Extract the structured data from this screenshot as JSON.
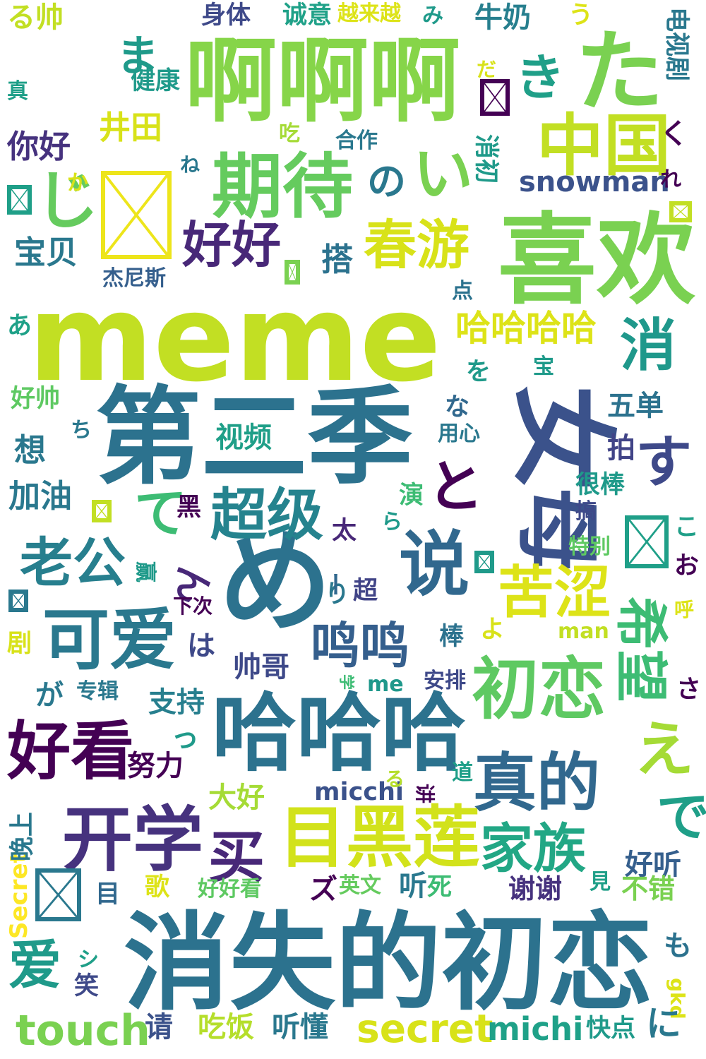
{
  "words": [
    {
      "text": "meme",
      "color": "#c2df23"
    },
    {
      "text": "消失的初恋",
      "color": "#2c728e"
    },
    {
      "text": "第二季",
      "color": "#2c728e"
    },
    {
      "text": "喜欢",
      "color": "#7ad151"
    },
    {
      "text": "啊啊啊",
      "color": "#86d549"
    },
    {
      "text": "哈哈哈",
      "color": "#2c728e"
    },
    {
      "text": "め",
      "color": "#2c728e"
    },
    {
      "text": "女",
      "color": "#3b528b"
    },
    {
      "text": "母",
      "color": "#3b528b"
    },
    {
      "text": "中国",
      "color": "#c2df23"
    },
    {
      "text": "期待",
      "color": "#65cb5e"
    },
    {
      "text": "目黑莲",
      "color": "#d2e21b"
    },
    {
      "text": "开学",
      "color": "#46327e"
    },
    {
      "text": "可爱",
      "color": "#2a788e"
    },
    {
      "text": "好看",
      "color": "#440154"
    },
    {
      "text": "初恋",
      "color": "#5ec962"
    },
    {
      "text": "真的",
      "color": "#31688e"
    },
    {
      "text": "说",
      "color": "#31688e"
    },
    {
      "text": "超级",
      "color": "#25838e"
    },
    {
      "text": "老公",
      "color": "#277f8e"
    },
    {
      "text": "苦涩",
      "color": "#dde318"
    },
    {
      "text": "春游",
      "color": "#d8e219"
    },
    {
      "text": "家族",
      "color": "#22a785"
    },
    {
      "text": "鸣鸣",
      "color": "#355f8d"
    },
    {
      "text": "好好",
      "color": "#482878"
    },
    {
      "text": "买",
      "color": "#482878"
    },
    {
      "text": "爱",
      "color": "#1f9a8a"
    },
    {
      "text": "消",
      "color": "#1f988b"
    },
    {
      "text": "希望",
      "color": "#3dbc74"
    },
    {
      "text": "た",
      "color": "#7ad151"
    },
    {
      "text": "き",
      "color": "#1f9f88"
    },
    {
      "text": "い",
      "color": "#7ad151"
    },
    {
      "text": "え",
      "color": "#a5db36"
    },
    {
      "text": "で",
      "color": "#1f9f88"
    },
    {
      "text": "と",
      "color": "#440154"
    },
    {
      "text": "す",
      "color": "#3e4989"
    },
    {
      "text": "て",
      "color": "#3dbc74"
    },
    {
      "text": "じ",
      "color": "#65cb5e"
    },
    {
      "text": "ま",
      "color": "#1f9a8a"
    },
    {
      "text": "の",
      "color": "#2a788e"
    },
    {
      "text": "ん",
      "color": "#482878"
    },
    {
      "text": "哈哈哈哈",
      "color": "#dde318"
    },
    {
      "text": "snowman",
      "color": "#3b528b"
    },
    {
      "text": "touch",
      "color": "#7ad151"
    },
    {
      "text": "secret",
      "color": "#d8e219"
    },
    {
      "text": "michi",
      "color": "#1fa188"
    },
    {
      "text": "micchi",
      "color": "#3b528b"
    },
    {
      "text": "Secret",
      "color": "#fde725"
    },
    {
      "text": "man",
      "color": "#c2df23"
    },
    {
      "text": "me",
      "color": "#1f988b"
    },
    {
      "text": "gkd",
      "color": "#dde318"
    },
    {
      "text": "你好",
      "color": "#46327e"
    },
    {
      "text": "井田",
      "color": "#d8e219"
    },
    {
      "text": "宝贝",
      "color": "#2a788e"
    },
    {
      "text": "搭",
      "color": "#2c728e"
    },
    {
      "text": "五单",
      "color": "#2c728e"
    },
    {
      "text": "拍",
      "color": "#414487"
    },
    {
      "text": "很棒",
      "color": "#1f9a8a"
    },
    {
      "text": "搞",
      "color": "#3e4989"
    },
    {
      "text": "想",
      "color": "#2a788e"
    },
    {
      "text": "加油",
      "color": "#2a788e"
    },
    {
      "text": "视频",
      "color": "#1f9f88"
    },
    {
      "text": "黑",
      "color": "#440154"
    },
    {
      "text": "太",
      "color": "#482878"
    },
    {
      "text": "超",
      "color": "#414487"
    },
    {
      "text": "帅哥",
      "color": "#3e4989"
    },
    {
      "text": "支持",
      "color": "#277f8e"
    },
    {
      "text": "努力",
      "color": "#440154"
    },
    {
      "text": "大好",
      "color": "#a5db36"
    },
    {
      "text": "好听",
      "color": "#355f8d"
    },
    {
      "text": "谢谢",
      "color": "#46327e"
    },
    {
      "text": "不错",
      "color": "#7ad151"
    },
    {
      "text": "吃饭",
      "color": "#b5de2b"
    },
    {
      "text": "听懂",
      "color": "#2a788e"
    },
    {
      "text": "快点",
      "color": "#1f9a8a"
    },
    {
      "text": "请",
      "color": "#3b528b"
    },
    {
      "text": "笑",
      "color": "#3e4989"
    },
    {
      "text": "晚上",
      "color": "#2a788e"
    },
    {
      "text": "歌",
      "color": "#dde318"
    },
    {
      "text": "好好看",
      "color": "#5ec962"
    },
    {
      "text": "英文",
      "color": "#65cb5e"
    },
    {
      "text": "听",
      "color": "#2a788e"
    },
    {
      "text": "死",
      "color": "#3dbc74"
    },
    {
      "text": "目",
      "color": "#31688e"
    },
    {
      "text": "見",
      "color": "#1f9f88"
    },
    {
      "text": "も",
      "color": "#2c728e"
    },
    {
      "text": "に",
      "color": "#2a788e"
    },
    {
      "text": "身体",
      "color": "#3e4989"
    },
    {
      "text": "诚意",
      "color": "#1fa188"
    },
    {
      "text": "越来越",
      "color": "#dde318"
    },
    {
      "text": "牛奶",
      "color": "#277f8e"
    },
    {
      "text": "电视剧",
      "color": "#2a788e"
    },
    {
      "text": "る帅",
      "color": "#c2df23"
    },
    {
      "text": "健康",
      "color": "#1f9a8a"
    },
    {
      "text": "真",
      "color": "#1f9f88"
    },
    {
      "text": "吃",
      "color": "#a5db36"
    },
    {
      "text": "合作",
      "color": "#2a788e"
    },
    {
      "text": "消初",
      "color": "#1f9a8a"
    },
    {
      "text": "杰尼斯",
      "color": "#355f8d"
    },
    {
      "text": "点",
      "color": "#2c728e"
    },
    {
      "text": "宝",
      "color": "#1f9a8a"
    },
    {
      "text": "好帅",
      "color": "#5ec962"
    },
    {
      "text": "用心",
      "color": "#2a788e"
    },
    {
      "text": "演",
      "color": "#3dbc74"
    },
    {
      "text": "特别",
      "color": "#5ec962"
    },
    {
      "text": "赢",
      "color": "#1f9a8a"
    },
    {
      "text": "下次",
      "color": "#440154"
    },
    {
      "text": "剧",
      "color": "#d8e219"
    },
    {
      "text": "专辑",
      "color": "#2a788e"
    },
    {
      "text": "安排",
      "color": "#3e4989"
    },
    {
      "text": "棒",
      "color": "#2c728e"
    },
    {
      "text": "道",
      "color": "#1f9f88"
    },
    {
      "text": "讲",
      "color": "#440154"
    },
    {
      "text": "学",
      "color": "#3dbc74"
    },
    {
      "text": "呼",
      "color": "#dde318"
    },
    {
      "text": "る",
      "color": "#b5de2b"
    },
    {
      "text": "み",
      "color": "#1f9a8a"
    },
    {
      "text": "う",
      "color": "#dde318"
    },
    {
      "text": "だ",
      "color": "#d8e219"
    },
    {
      "text": "く",
      "color": "#440154"
    },
    {
      "text": "れ",
      "color": "#440154"
    },
    {
      "text": "か",
      "color": "#d8e219"
    },
    {
      "text": "ね",
      "color": "#2a788e"
    },
    {
      "text": "あ",
      "color": "#1fa188"
    },
    {
      "text": "を",
      "color": "#1f9a8a"
    },
    {
      "text": "な",
      "color": "#31688e"
    },
    {
      "text": "ち",
      "color": "#2a788e"
    },
    {
      "text": "ら",
      "color": "#1f9a8a"
    },
    {
      "text": "こ",
      "color": "#1f9f88"
    },
    {
      "text": "お",
      "color": "#440154"
    },
    {
      "text": "り",
      "color": "#2a788e"
    },
    {
      "text": "は",
      "color": "#3e4989"
    },
    {
      "text": "よ",
      "color": "#d8e219"
    },
    {
      "text": "が",
      "color": "#2a788e"
    },
    {
      "text": "っ",
      "color": "#1f9a8a"
    },
    {
      "text": "さ",
      "color": "#440154"
    },
    {
      "text": "ズ",
      "color": "#440154"
    },
    {
      "text": "シ",
      "color": "#1f9f88"
    },
    {
      "text": "ー",
      "color": "#31688e"
    }
  ],
  "tofu": [
    {
      "color": "#ede51b"
    },
    {
      "color": "#440154"
    },
    {
      "color": "#1f9f88"
    },
    {
      "color": "#c2df23"
    },
    {
      "color": "#7ad151"
    },
    {
      "color": "#c2df23"
    },
    {
      "color": "#1f9f88"
    },
    {
      "color": "#1f9a8a"
    },
    {
      "color": "#2a788e"
    },
    {
      "color": "#2a788e"
    },
    {
      "color": "#1f9a8a"
    }
  ]
}
